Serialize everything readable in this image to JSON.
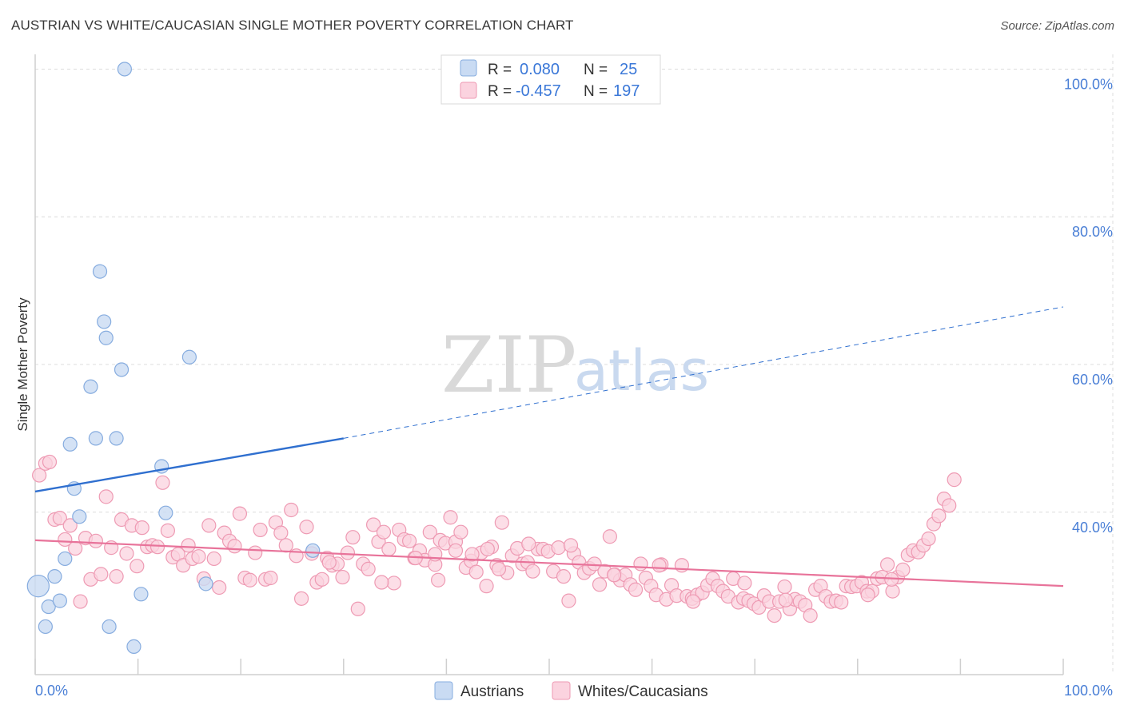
{
  "header": {
    "title": "AUSTRIAN VS WHITE/CAUCASIAN SINGLE MOTHER POVERTY CORRELATION CHART",
    "source": "Source: ZipAtlas.com"
  },
  "watermark": {
    "zip": "ZIP",
    "atlas": "atlas"
  },
  "legend": {
    "rows": [
      {
        "r_label": "R =",
        "r_value": "0.080",
        "n_label": "N =",
        "n_value": "25",
        "color": "#a8c6ee"
      },
      {
        "r_label": "R =",
        "r_value": "-0.457",
        "n_label": "N =",
        "n_value": "197",
        "color": "#f5b6c8"
      }
    ]
  },
  "bottom_legend": [
    {
      "label": "Austrians",
      "color": "#a8c6ee"
    },
    {
      "label": "Whites/Caucasians",
      "color": "#f5b6c8"
    }
  ],
  "colors": {
    "blue_fill": "#c9dbf3",
    "blue_stroke": "#86acdf",
    "blue_line": "#2f6fcf",
    "pink_fill": "#fbd3df",
    "pink_stroke": "#ee9ab3",
    "pink_line": "#e8739a",
    "grid": "#dcdcdc",
    "tick_label": "#4a7fd6"
  },
  "chart_data": {
    "type": "scatter",
    "title": "AUSTRIAN VS WHITE/CAUCASIAN SINGLE MOTHER POVERTY CORRELATION CHART",
    "xlabel": "",
    "ylabel": "Single Mother Poverty",
    "xlim": [
      0,
      100
    ],
    "ylim": [
      18,
      102
    ],
    "x_tick_labels": [
      "0.0%",
      "100.0%"
    ],
    "y_ticks": [
      40,
      60,
      80,
      100
    ],
    "y_tick_labels": [
      "40.0%",
      "60.0%",
      "80.0%",
      "100.0%"
    ],
    "grid": true,
    "legend_position": "top-center",
    "series": [
      {
        "name": "Austrians",
        "R": 0.08,
        "N": 25,
        "points": [
          [
            0.3,
            30.0,
            1.6
          ],
          [
            1,
            24.5,
            1
          ],
          [
            1.3,
            27.2,
            1
          ],
          [
            1.9,
            31.3,
            1
          ],
          [
            2.4,
            28.0,
            1
          ],
          [
            2.9,
            33.7,
            1
          ],
          [
            3.4,
            49.2,
            1
          ],
          [
            3.8,
            43.2,
            1
          ],
          [
            4.3,
            39.4,
            1
          ],
          [
            5.4,
            57.0,
            1
          ],
          [
            5.9,
            50.0,
            1
          ],
          [
            6.3,
            72.6,
            1
          ],
          [
            6.7,
            65.8,
            1
          ],
          [
            6.9,
            63.6,
            1
          ],
          [
            7.2,
            24.5,
            1
          ],
          [
            7.9,
            50.0,
            1
          ],
          [
            8.4,
            59.3,
            1
          ],
          [
            8.7,
            100.0,
            1
          ],
          [
            9.6,
            21.8,
            1
          ],
          [
            10.3,
            28.9,
            1
          ],
          [
            12.3,
            46.2,
            1
          ],
          [
            12.7,
            39.9,
            1
          ],
          [
            15.0,
            61.0,
            1
          ],
          [
            16.6,
            30.3,
            1
          ],
          [
            27.0,
            34.8,
            1
          ]
        ],
        "trend": {
          "x": [
            0,
            30
          ],
          "y": [
            42.8,
            50.0
          ],
          "dashed_extension": {
            "x": [
              30,
              100
            ],
            "y": [
              50.0,
              67.8
            ]
          }
        }
      },
      {
        "name": "Whites/Caucasians",
        "R": -0.457,
        "N": 197,
        "points": [
          [
            0.4,
            45.0
          ],
          [
            1,
            46.6
          ],
          [
            1.4,
            46.8
          ],
          [
            1.9,
            39.0
          ],
          [
            2.4,
            39.2
          ],
          [
            2.9,
            36.3
          ],
          [
            3.4,
            38.2
          ],
          [
            3.9,
            35.1
          ],
          [
            4.4,
            27.9
          ],
          [
            4.9,
            36.5
          ],
          [
            5.4,
            30.9
          ],
          [
            5.9,
            36.1
          ],
          [
            6.4,
            31.6
          ],
          [
            6.9,
            42.1
          ],
          [
            7.4,
            35.2
          ],
          [
            7.9,
            31.3
          ],
          [
            8.4,
            39.0
          ],
          [
            8.9,
            34.4
          ],
          [
            9.4,
            38.2
          ],
          [
            9.9,
            32.7
          ],
          [
            10.4,
            37.9
          ],
          [
            10.9,
            35.3
          ],
          [
            11.4,
            35.5
          ],
          [
            11.9,
            35.3
          ],
          [
            12.4,
            44.0
          ],
          [
            12.9,
            37.5
          ],
          [
            13.4,
            33.9
          ],
          [
            13.9,
            34.3
          ],
          [
            14.4,
            32.8
          ],
          [
            14.9,
            35.5
          ],
          [
            15.3,
            33.7
          ],
          [
            15.9,
            34.0
          ],
          [
            16.4,
            31.0
          ],
          [
            16.9,
            38.2
          ],
          [
            17.4,
            33.7
          ],
          [
            17.9,
            29.8
          ],
          [
            18.4,
            37.2
          ],
          [
            18.9,
            36.1
          ],
          [
            19.4,
            35.4
          ],
          [
            19.9,
            39.8
          ],
          [
            20.4,
            31.1
          ],
          [
            20.9,
            30.8
          ],
          [
            21.4,
            34.5
          ],
          [
            21.9,
            37.6
          ],
          [
            22.4,
            30.9
          ],
          [
            22.9,
            31.1
          ],
          [
            23.4,
            38.6
          ],
          [
            23.9,
            37.2
          ],
          [
            24.4,
            35.5
          ],
          [
            24.9,
            40.3
          ],
          [
            25.4,
            34.1
          ],
          [
            25.9,
            28.3
          ],
          [
            26.4,
            38.0
          ],
          [
            26.9,
            34.4
          ],
          [
            27.4,
            30.5
          ],
          [
            27.9,
            30.9
          ],
          [
            28.4,
            33.8
          ],
          [
            28.9,
            32.8
          ],
          [
            29.4,
            33.0
          ],
          [
            29.9,
            31.2
          ],
          [
            30.4,
            34.5
          ],
          [
            30.9,
            36.6
          ],
          [
            31.4,
            26.9
          ],
          [
            31.9,
            33.0
          ],
          [
            32.4,
            32.3
          ],
          [
            32.9,
            38.3
          ],
          [
            33.4,
            36.0
          ],
          [
            33.9,
            37.3
          ],
          [
            34.4,
            35.0
          ],
          [
            34.9,
            30.4
          ],
          [
            35.4,
            37.6
          ],
          [
            35.9,
            36.3
          ],
          [
            36.4,
            36.1
          ],
          [
            36.9,
            33.8
          ],
          [
            37.4,
            34.8
          ],
          [
            37.9,
            33.5
          ],
          [
            38.4,
            37.3
          ],
          [
            38.9,
            32.9
          ],
          [
            39.4,
            36.2
          ],
          [
            39.9,
            35.8
          ],
          [
            40.4,
            39.3
          ],
          [
            40.9,
            36.0
          ],
          [
            41.4,
            37.3
          ],
          [
            41.9,
            32.5
          ],
          [
            42.4,
            33.4
          ],
          [
            42.9,
            31.9
          ],
          [
            43.4,
            34.5
          ],
          [
            43.9,
            30.0
          ],
          [
            44.4,
            35.3
          ],
          [
            44.9,
            32.8
          ],
          [
            45.4,
            38.6
          ],
          [
            45.9,
            31.8
          ],
          [
            46.4,
            34.1
          ],
          [
            46.9,
            35.1
          ],
          [
            47.4,
            33.0
          ],
          [
            47.9,
            33.2
          ],
          [
            48.4,
            32.0
          ],
          [
            48.9,
            35.0
          ],
          [
            49.4,
            35.0
          ],
          [
            49.9,
            34.7
          ],
          [
            50.4,
            32.0
          ],
          [
            50.9,
            35.2
          ],
          [
            51.4,
            31.3
          ],
          [
            51.9,
            28.0
          ],
          [
            52.4,
            34.4
          ],
          [
            52.9,
            33.2
          ],
          [
            53.4,
            31.8
          ],
          [
            53.9,
            32.4
          ],
          [
            54.4,
            33.0
          ],
          [
            54.9,
            30.2
          ],
          [
            55.4,
            32.0
          ],
          [
            55.9,
            36.7
          ],
          [
            56.4,
            31.5
          ],
          [
            56.9,
            30.8
          ],
          [
            57.4,
            31.5
          ],
          [
            57.9,
            30.2
          ],
          [
            58.4,
            29.5
          ],
          [
            58.9,
            33.0
          ],
          [
            59.4,
            31.1
          ],
          [
            59.9,
            30.0
          ],
          [
            60.4,
            28.8
          ],
          [
            60.9,
            32.9
          ],
          [
            61.4,
            28.2
          ],
          [
            61.9,
            30.1
          ],
          [
            62.4,
            28.7
          ],
          [
            62.9,
            32.8
          ],
          [
            63.4,
            28.6
          ],
          [
            63.9,
            28.3
          ],
          [
            64.4,
            28.8
          ],
          [
            64.9,
            29.1
          ],
          [
            65.4,
            30.1
          ],
          [
            65.9,
            31.0
          ],
          [
            66.4,
            30.0
          ],
          [
            66.9,
            29.3
          ],
          [
            67.4,
            28.6
          ],
          [
            67.9,
            31.0
          ],
          [
            68.4,
            27.8
          ],
          [
            68.9,
            28.3
          ],
          [
            69.4,
            28.0
          ],
          [
            69.9,
            27.6
          ],
          [
            70.4,
            27.1
          ],
          [
            70.9,
            28.7
          ],
          [
            71.4,
            27.9
          ],
          [
            71.9,
            26.0
          ],
          [
            72.4,
            27.9
          ],
          [
            72.9,
            29.9
          ],
          [
            73.4,
            26.9
          ],
          [
            73.9,
            28.2
          ],
          [
            74.4,
            27.9
          ],
          [
            74.9,
            27.4
          ],
          [
            75.4,
            26.0
          ],
          [
            75.9,
            29.5
          ],
          [
            76.4,
            30.0
          ],
          [
            76.9,
            28.6
          ],
          [
            77.4,
            27.9
          ],
          [
            77.9,
            28.0
          ],
          [
            78.4,
            27.8
          ],
          [
            78.9,
            30.0
          ],
          [
            79.4,
            29.9
          ],
          [
            79.9,
            30.0
          ],
          [
            80.4,
            30.5
          ],
          [
            80.9,
            29.3
          ],
          [
            81.4,
            29.3
          ],
          [
            81.9,
            31.0
          ],
          [
            82.4,
            31.2
          ],
          [
            82.9,
            32.9
          ],
          [
            83.4,
            29.3
          ],
          [
            83.9,
            31.2
          ],
          [
            84.4,
            32.2
          ],
          [
            84.9,
            34.2
          ],
          [
            85.4,
            34.8
          ],
          [
            85.9,
            34.6
          ],
          [
            86.4,
            35.5
          ],
          [
            86.9,
            36.4
          ],
          [
            87.4,
            38.4
          ],
          [
            87.9,
            39.5
          ],
          [
            88.4,
            41.8
          ],
          [
            88.9,
            40.9
          ],
          [
            89.4,
            44.4
          ],
          [
            45.1,
            32.3
          ],
          [
            48.0,
            35.7
          ],
          [
            52.1,
            35.5
          ],
          [
            60.7,
            32.8
          ],
          [
            64.0,
            27.9
          ],
          [
            56.3,
            31.5
          ],
          [
            69.0,
            30.4
          ],
          [
            73.0,
            28.1
          ],
          [
            81.0,
            28.8
          ],
          [
            83.3,
            30.9
          ],
          [
            33.7,
            30.5
          ],
          [
            28.6,
            33.2
          ],
          [
            39.2,
            30.8
          ],
          [
            37.0,
            33.8
          ],
          [
            44.0,
            35.0
          ],
          [
            42.5,
            34.3
          ],
          [
            40.9,
            34.8
          ],
          [
            38.9,
            34.3
          ]
        ],
        "trend": {
          "x": [
            0,
            100
          ],
          "y": [
            36.2,
            30.0
          ]
        }
      }
    ]
  }
}
